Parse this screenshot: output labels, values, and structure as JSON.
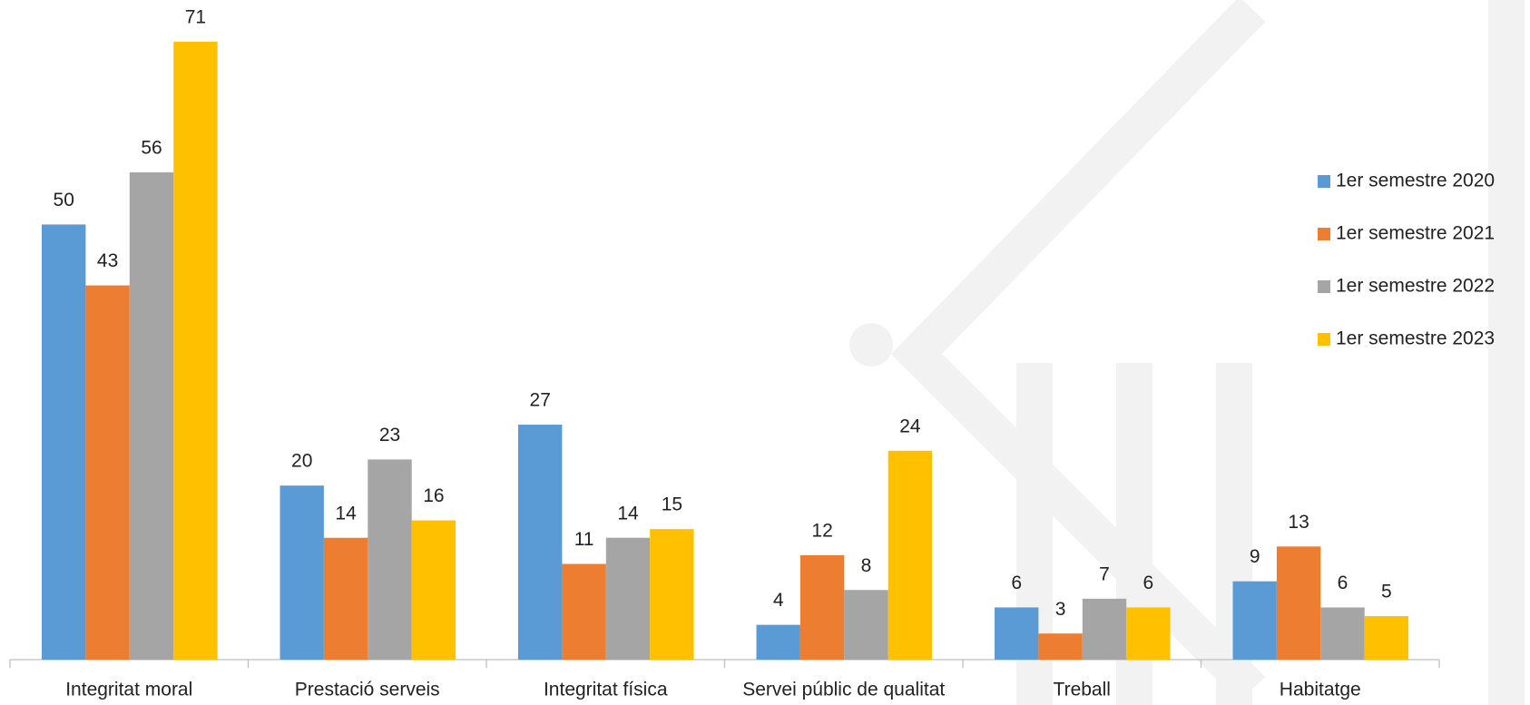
{
  "chart_data": {
    "type": "bar",
    "categories": [
      "Integritat moral",
      "Prestació serveis",
      "Integritat física",
      "Servei públic de qualitat",
      "Treball",
      "Habitatge"
    ],
    "series": [
      {
        "name": "1er semestre 2020",
        "color": "#5b9bd5",
        "values": [
          50,
          20,
          27,
          4,
          6,
          9
        ]
      },
      {
        "name": "1er semestre 2021",
        "color": "#ed7d31",
        "values": [
          43,
          14,
          11,
          12,
          3,
          13
        ]
      },
      {
        "name": "1er semestre 2022",
        "color": "#a5a5a5",
        "values": [
          56,
          23,
          14,
          8,
          7,
          6
        ]
      },
      {
        "name": "1er semestre 2023",
        "color": "#ffc000",
        "values": [
          71,
          16,
          15,
          24,
          6,
          5
        ]
      }
    ],
    "legend": "right"
  }
}
